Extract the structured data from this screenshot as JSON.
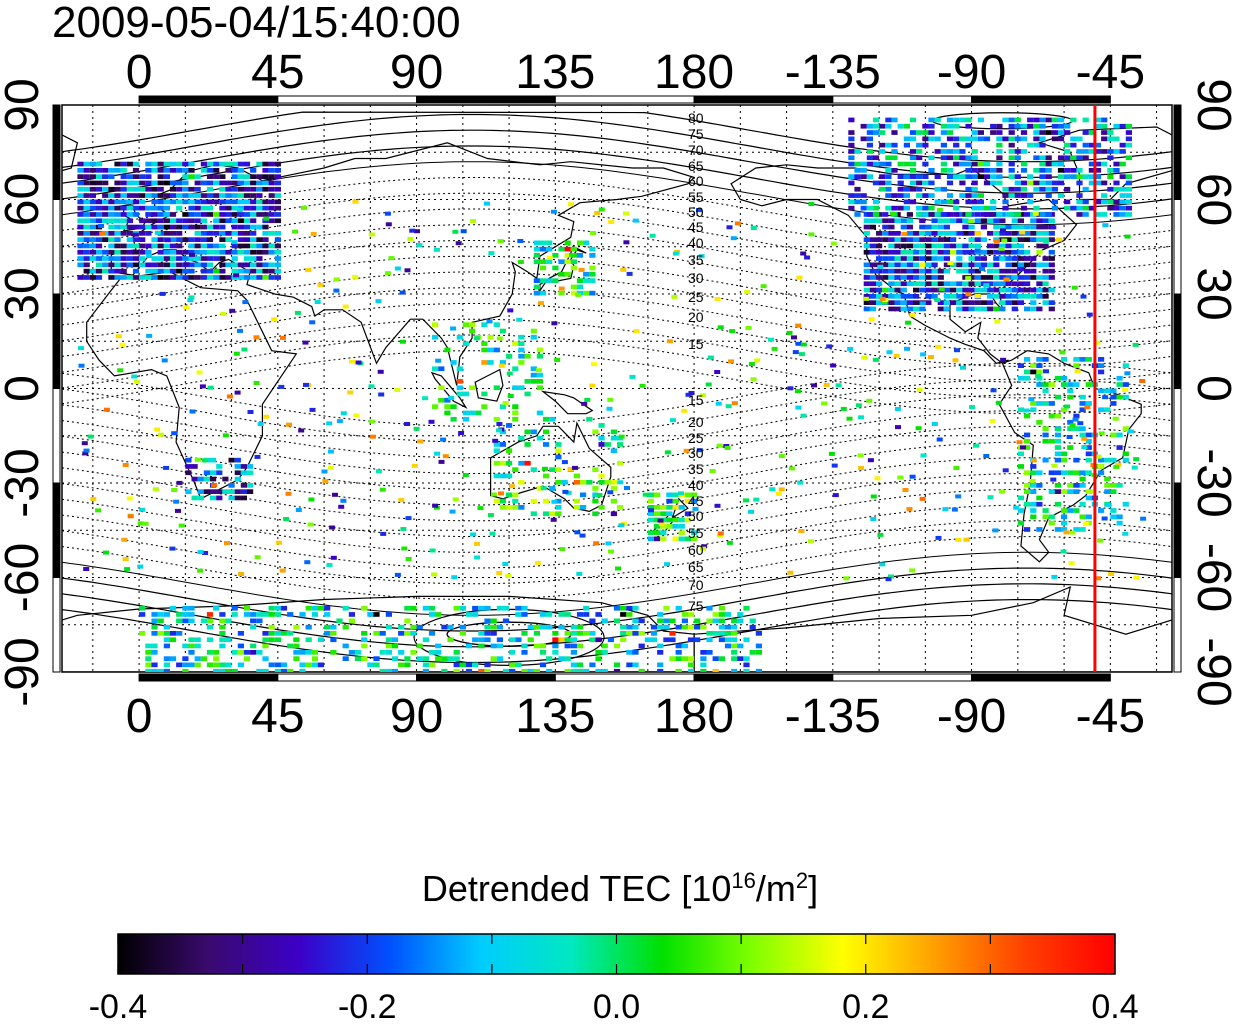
{
  "header": {
    "timestamp": "2009-05-04/15:40:00"
  },
  "map": {
    "projection": "equirectangular",
    "lon_center": 155,
    "lon_range": [
      -25,
      335
    ],
    "lat_range": [
      -90,
      90
    ],
    "lon_tick_labels": [
      "0",
      "45",
      "90",
      "135",
      "180",
      "-135",
      "-90",
      "-45"
    ],
    "lon_tick_values": [
      0,
      45,
      90,
      135,
      180,
      225,
      270,
      315
    ],
    "lat_tick_labels": [
      "-90",
      "-60",
      "-30",
      "0",
      "30",
      "60",
      "90"
    ],
    "lat_tick_values": [
      -90,
      -60,
      -30,
      0,
      30,
      60,
      90
    ],
    "grid": "dotted, every 15 degrees",
    "marker_line": {
      "longitude": -50,
      "color": "#ff0000"
    },
    "magnetic_latitude_labels_north": [
      "80",
      "75",
      "70",
      "65",
      "60",
      "55",
      "50",
      "45",
      "40",
      "35",
      "30",
      "25",
      "20",
      "15"
    ],
    "magnetic_latitude_labels_south": [
      "15",
      "20",
      "25",
      "30",
      "35",
      "40",
      "45",
      "50",
      "55",
      "60",
      "65",
      "70",
      "75"
    ],
    "coastlines": "black",
    "data_clusters": [
      {
        "region": "Europe",
        "lon": [
          -20,
          45
        ],
        "lat": [
          35,
          72
        ],
        "mean": -0.2,
        "density": 0.9
      },
      {
        "region": "North America",
        "lon": [
          -125,
          -65
        ],
        "lat": [
          25,
          55
        ],
        "mean": -0.2,
        "density": 0.9
      },
      {
        "region": "Canada / Arctic",
        "lon": [
          -130,
          -40
        ],
        "lat": [
          55,
          85
        ],
        "mean": -0.15,
        "density": 0.6
      },
      {
        "region": "Japan",
        "lon": [
          128,
          146
        ],
        "lat": [
          30,
          46
        ],
        "mean": 0.0,
        "density": 0.6
      },
      {
        "region": "South America",
        "lon": [
          -75,
          -40
        ],
        "lat": [
          -45,
          10
        ],
        "mean": -0.05,
        "density": 0.35
      },
      {
        "region": "Southern Africa",
        "lon": [
          15,
          35
        ],
        "lat": [
          -35,
          -22
        ],
        "mean": -0.2,
        "density": 0.5
      },
      {
        "region": "Australia",
        "lon": [
          115,
          155
        ],
        "lat": [
          -40,
          -10
        ],
        "mean": 0.0,
        "density": 0.25
      },
      {
        "region": "New Zealand",
        "lon": [
          165,
          180
        ],
        "lat": [
          -48,
          -34
        ],
        "mean": 0.05,
        "density": 0.7
      },
      {
        "region": "Antarctica",
        "lon": [
          0,
          200
        ],
        "lat": [
          -90,
          -70
        ],
        "mean": -0.05,
        "density": 0.4
      },
      {
        "region": "Southeast Asia",
        "lon": [
          95,
          130
        ],
        "lat": [
          -10,
          20
        ],
        "mean": 0.0,
        "density": 0.2
      }
    ]
  },
  "colorbar": {
    "title_prefix": "Detrended TEC  [10",
    "title_sup1": "16",
    "title_mid": "/m",
    "title_sup2": "2",
    "title_suffix": "]",
    "min": -0.4,
    "max": 0.4,
    "tick_labels": [
      "-0.4",
      "-0.2",
      "0.0",
      "0.2",
      "0.4"
    ],
    "colors": [
      "#000000",
      "#3a0a6e",
      "#3c00c8",
      "#0050ff",
      "#00ccff",
      "#00e8c0",
      "#00e000",
      "#80ff00",
      "#ffff00",
      "#ffa000",
      "#ff4000",
      "#ff0000"
    ]
  }
}
